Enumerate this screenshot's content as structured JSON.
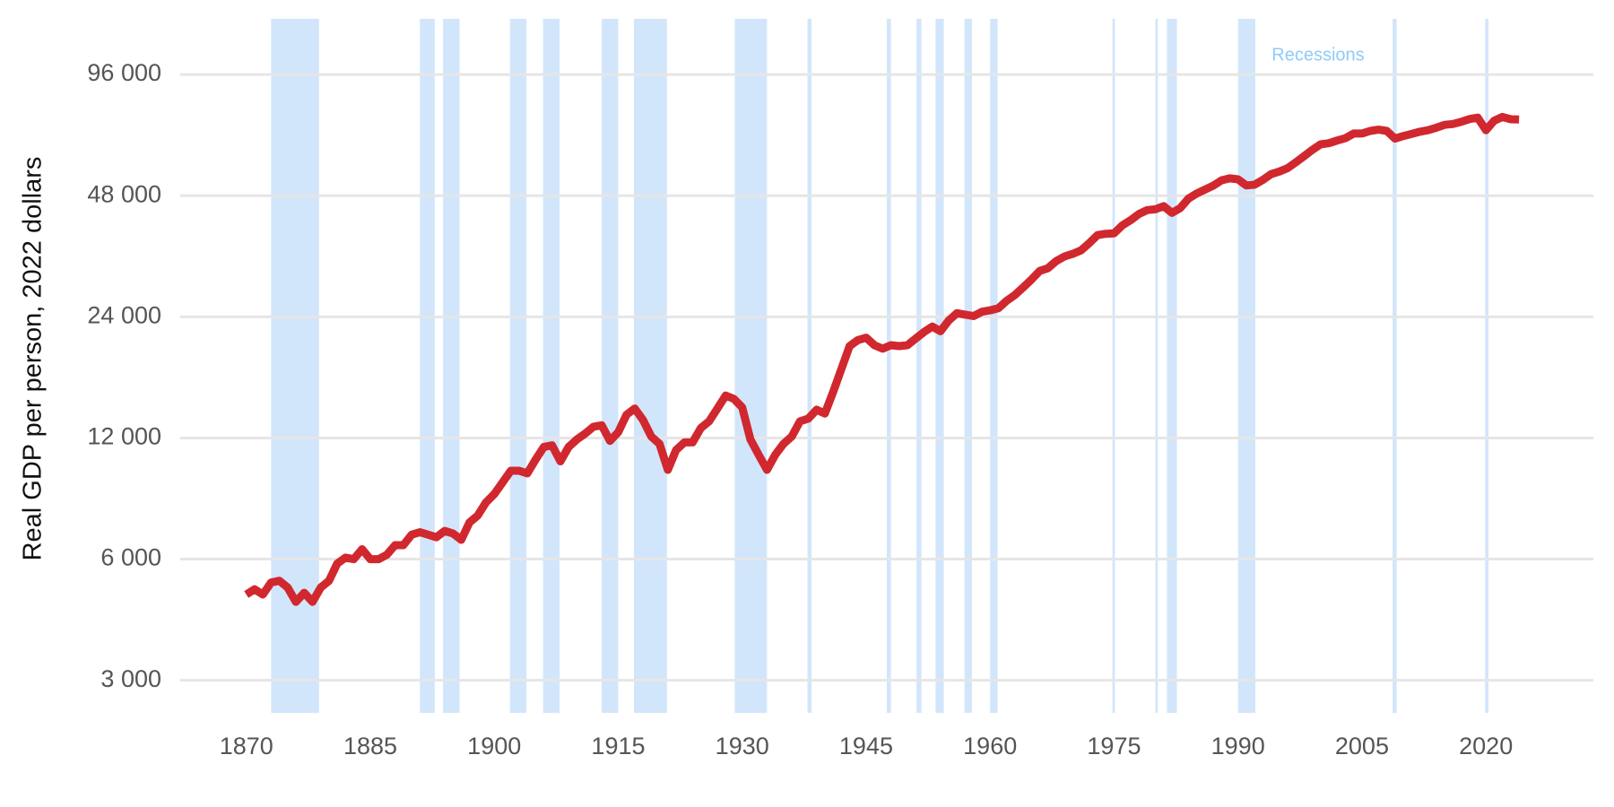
{
  "chart_data": {
    "type": "line",
    "y_label": "Real GDP per person, 2022 dollars",
    "annotation": "Recessions",
    "log_scale": true,
    "grid": true,
    "xlim": [
      1862,
      2033
    ],
    "ylim": [
      2490,
      132000
    ],
    "xticks": [
      1870,
      1885,
      1900,
      1915,
      1930,
      1945,
      1960,
      1975,
      1990,
      2005,
      2020
    ],
    "yticks": [
      {
        "value": 3000,
        "label": "3 000"
      },
      {
        "value": 6000,
        "label": "6 000"
      },
      {
        "value": 12000,
        "label": "12 000"
      },
      {
        "value": 24000,
        "label": "24 000"
      },
      {
        "value": 48000,
        "label": "48 000"
      },
      {
        "value": 96000,
        "label": "96 000"
      }
    ],
    "recession_color": "#d2e6fb",
    "recessions": [
      [
        1873,
        1878.8
      ],
      [
        1891,
        1892.8
      ],
      [
        1893.8,
        1895.8
      ],
      [
        1901.9,
        1903.9
      ],
      [
        1905.9,
        1907.9
      ],
      [
        1913,
        1915
      ],
      [
        1916.9,
        1920.9
      ],
      [
        1929.1,
        1933
      ],
      [
        1937.9,
        1938.4
      ],
      [
        1947.5,
        1948
      ],
      [
        1951.1,
        1951.7
      ],
      [
        1953.4,
        1954.4
      ],
      [
        1956.9,
        1957.8
      ],
      [
        1960,
        1960.9
      ],
      [
        1974.8,
        1975.1
      ],
      [
        1980,
        1980.3
      ],
      [
        1981.4,
        1982.6
      ],
      [
        1990,
        1992.1
      ],
      [
        2008.7,
        2009.2
      ],
      [
        2019.9,
        2020.3
      ]
    ],
    "x": [
      1870,
      1871,
      1872,
      1873,
      1874,
      1875,
      1876,
      1877,
      1878,
      1879,
      1880,
      1881,
      1882,
      1883,
      1884,
      1885,
      1886,
      1887,
      1888,
      1889,
      1890,
      1891,
      1892,
      1893,
      1894,
      1895,
      1896,
      1897,
      1898,
      1899,
      1900,
      1901,
      1902,
      1903,
      1904,
      1905,
      1906,
      1907,
      1908,
      1909,
      1910,
      1911,
      1912,
      1913,
      1914,
      1915,
      1916,
      1917,
      1918,
      1919,
      1920,
      1921,
      1922,
      1923,
      1924,
      1925,
      1926,
      1927,
      1928,
      1929,
      1930,
      1931,
      1932,
      1933,
      1934,
      1935,
      1936,
      1937,
      1938,
      1939,
      1940,
      1941,
      1942,
      1943,
      1944,
      1945,
      1946,
      1947,
      1948,
      1949,
      1950,
      1951,
      1952,
      1953,
      1954,
      1955,
      1956,
      1957,
      1958,
      1959,
      1960,
      1961,
      1962,
      1963,
      1964,
      1965,
      1966,
      1967,
      1968,
      1969,
      1970,
      1971,
      1972,
      1973,
      1974,
      1975,
      1976,
      1977,
      1978,
      1979,
      1980,
      1981,
      1982,
      1983,
      1984,
      1985,
      1986,
      1987,
      1988,
      1989,
      1990,
      1991,
      1992,
      1993,
      1994,
      1995,
      1996,
      1997,
      1998,
      1999,
      2000,
      2001,
      2002,
      2003,
      2004,
      2005,
      2006,
      2007,
      2008,
      2009,
      2010,
      2011,
      2012,
      2013,
      2014,
      2015,
      2016,
      2017,
      2018,
      2019,
      2020,
      2021,
      2022,
      2023,
      2024
    ],
    "series": [
      {
        "color": "#d0282e",
        "values": [
          4900,
          5050,
          4900,
          5250,
          5300,
          5100,
          4700,
          4950,
          4700,
          5100,
          5300,
          5850,
          6050,
          6000,
          6350,
          6000,
          6000,
          6150,
          6500,
          6500,
          6900,
          7000,
          6900,
          6800,
          7050,
          6950,
          6700,
          7400,
          7700,
          8300,
          8700,
          9300,
          9950,
          9950,
          9800,
          10600,
          11400,
          11500,
          10500,
          11400,
          11900,
          12300,
          12800,
          12900,
          11800,
          12400,
          13700,
          14200,
          13300,
          12100,
          11600,
          10000,
          11200,
          11700,
          11700,
          12700,
          13200,
          14200,
          15300,
          15000,
          14300,
          11900,
          10900,
          10000,
          10900,
          11600,
          12100,
          13200,
          13400,
          14100,
          13800,
          15600,
          17800,
          20300,
          21000,
          21300,
          20400,
          20000,
          20400,
          20300,
          20400,
          21200,
          22000,
          22700,
          22100,
          23500,
          24500,
          24300,
          24100,
          24700,
          24900,
          25200,
          26300,
          27200,
          28400,
          29700,
          31200,
          31700,
          33000,
          33900,
          34400,
          35100,
          36600,
          38300,
          38600,
          38700,
          40500,
          41700,
          43200,
          44200,
          44400,
          45200,
          43500,
          44700,
          47200,
          48600,
          49700,
          50800,
          52400,
          53000,
          52700,
          50900,
          51100,
          52500,
          54300,
          55100,
          56200,
          58100,
          60200,
          62400,
          64400,
          64800,
          65800,
          66700,
          68500,
          68500,
          69500,
          70000,
          69500,
          66500,
          67500,
          68300,
          69200,
          69800,
          70800,
          72000,
          72300,
          73200,
          74400,
          75000,
          69800,
          73700,
          75300,
          74300,
          74200
        ]
      }
    ]
  }
}
